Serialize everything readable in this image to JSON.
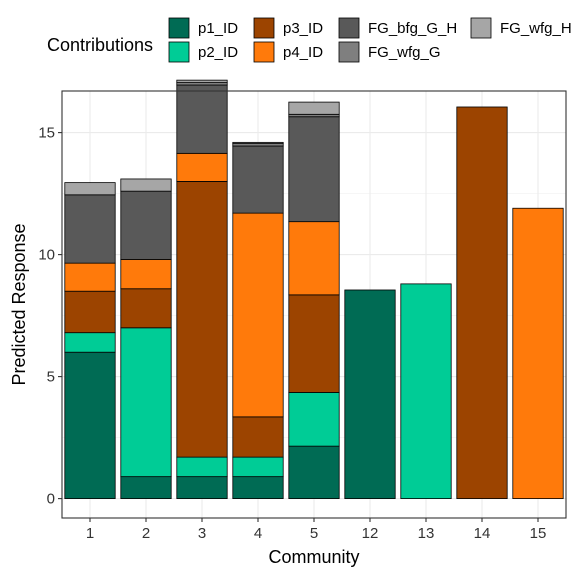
{
  "legend": {
    "title": "Contributions"
  },
  "chart_data": {
    "type": "bar",
    "stacked": true,
    "xlabel": "Community",
    "ylabel": "Predicted Response",
    "categories": [
      "1",
      "2",
      "3",
      "4",
      "5",
      "12",
      "13",
      "14",
      "15"
    ],
    "ylim": [
      0,
      17.5
    ],
    "yticks": [
      0,
      5,
      10,
      15
    ],
    "grid": true,
    "legend_position": "top",
    "series": [
      {
        "name": "p1_ID",
        "color": "#006b54",
        "values": [
          6.0,
          0.9,
          0.9,
          0.9,
          2.15,
          8.55,
          0,
          0,
          0
        ]
      },
      {
        "name": "p2_ID",
        "color": "#00cc96",
        "values": [
          0.8,
          6.1,
          0.8,
          0.8,
          2.2,
          0,
          8.8,
          0,
          0
        ]
      },
      {
        "name": "p3_ID",
        "color": "#9c4400",
        "values": [
          1.7,
          1.6,
          11.3,
          1.65,
          4.0,
          0,
          0,
          16.05,
          0
        ]
      },
      {
        "name": "p4_ID",
        "color": "#ff7a0b",
        "values": [
          1.15,
          1.2,
          1.15,
          8.35,
          3.0,
          0,
          0,
          0,
          11.9
        ]
      },
      {
        "name": "FG_bfg_G_H",
        "color": "#595959",
        "values": [
          2.8,
          2.8,
          2.8,
          2.75,
          4.3,
          0,
          0,
          0,
          0
        ]
      },
      {
        "name": "FG_wfg_G",
        "color": "#7f7f7f",
        "values": [
          0.0,
          0.0,
          0.1,
          0.1,
          0.1,
          0,
          0,
          0,
          0
        ]
      },
      {
        "name": "FG_wfg_H",
        "color": "#a6a6a6",
        "values": [
          0.5,
          0.5,
          0.1,
          0.05,
          0.5,
          0,
          0,
          0,
          0
        ]
      }
    ]
  }
}
